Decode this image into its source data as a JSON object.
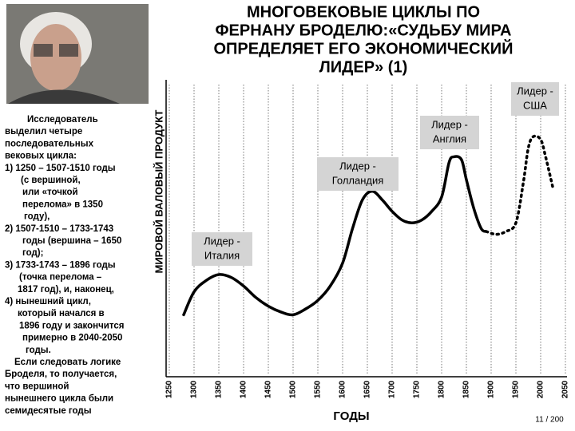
{
  "title": [
    "МНОГОВЕКОВЫЕ ЦИКЛЫ ПО",
    "ФЕРНАНУ БРОДЕЛЮ:«СУДЬБУ МИРА",
    "ОПРЕДЕЛЯЕТ ЕГО ЭКОНОМИЧЕСКИЙ",
    "ЛИДЕР» (1)"
  ],
  "side_text": [
    "Исследователь",
    "выделил  четыре",
    "последовательных",
    "вековых цикла:",
    "1) 1250 – 1507-1510 годы",
    "(с вершиной,",
    "или «точкой",
    "перелома» в 1350",
    "году),",
    "2) 1507-1510  – 1733-1743",
    "годы (вершина – 1650",
    "год);",
    "3) 1733-1743  – 1896 годы",
    "(точка перелома –",
    "1817 год), и, наконец,",
    "4) нынешний цикл,",
    "который начался в",
    "1896 году и закончится",
    "примерно в 2040-2050",
    "годы.",
    "Если следовать логике",
    "Броделя, то получается,",
    "что вершиной",
    "нынешнего цикла были",
    "семидесятые годы"
  ],
  "page_number": "11 / 200",
  "chart_data": {
    "type": "line",
    "ylabel": "МИРОВОЙ ВАЛОВЫЙ ПРОДУКТ",
    "xlabel": "ГОДЫ",
    "xlim": [
      1250,
      2050
    ],
    "xticks": [
      1250,
      1300,
      1350,
      1400,
      1450,
      1500,
      1550,
      1600,
      1650,
      1700,
      1750,
      1800,
      1850,
      1900,
      1950,
      2000,
      2050
    ],
    "ylim": [
      0,
      100
    ],
    "grid": true,
    "series": [
      {
        "color": "#000000",
        "dashed": false,
        "x": [
          1279,
          1300,
          1325,
          1350,
          1375,
          1400,
          1425,
          1450,
          1475,
          1500,
          1525,
          1550,
          1575,
          1600,
          1620,
          1640,
          1660,
          1680,
          1700,
          1720,
          1740,
          1760,
          1780,
          1800,
          1815,
          1825,
          1840,
          1850,
          1865,
          1880,
          1890
        ],
        "values": [
          21,
          29,
          33,
          35,
          34,
          31,
          27,
          24,
          22,
          21,
          23,
          26,
          31,
          39,
          51,
          61,
          64,
          61,
          57,
          54,
          53,
          54,
          57,
          62,
          74,
          76,
          75,
          68,
          58,
          51,
          50
        ]
      },
      {
        "color": "#000000",
        "dashed": true,
        "x": [
          1890,
          1910,
          1930,
          1950,
          1965,
          1975,
          1985,
          2000,
          2010,
          2025
        ],
        "values": [
          50,
          49,
          50,
          53,
          67,
          79,
          83,
          82,
          76,
          65
        ]
      }
    ],
    "annotations": [
      {
        "text": [
          "Лидер -",
          "Италия"
        ]
      },
      {
        "text": [
          "Лидер -",
          "Голландия"
        ]
      },
      {
        "text": [
          "Лидер -",
          "Англия"
        ]
      },
      {
        "text": [
          "Лидер -",
          "США"
        ]
      }
    ]
  }
}
